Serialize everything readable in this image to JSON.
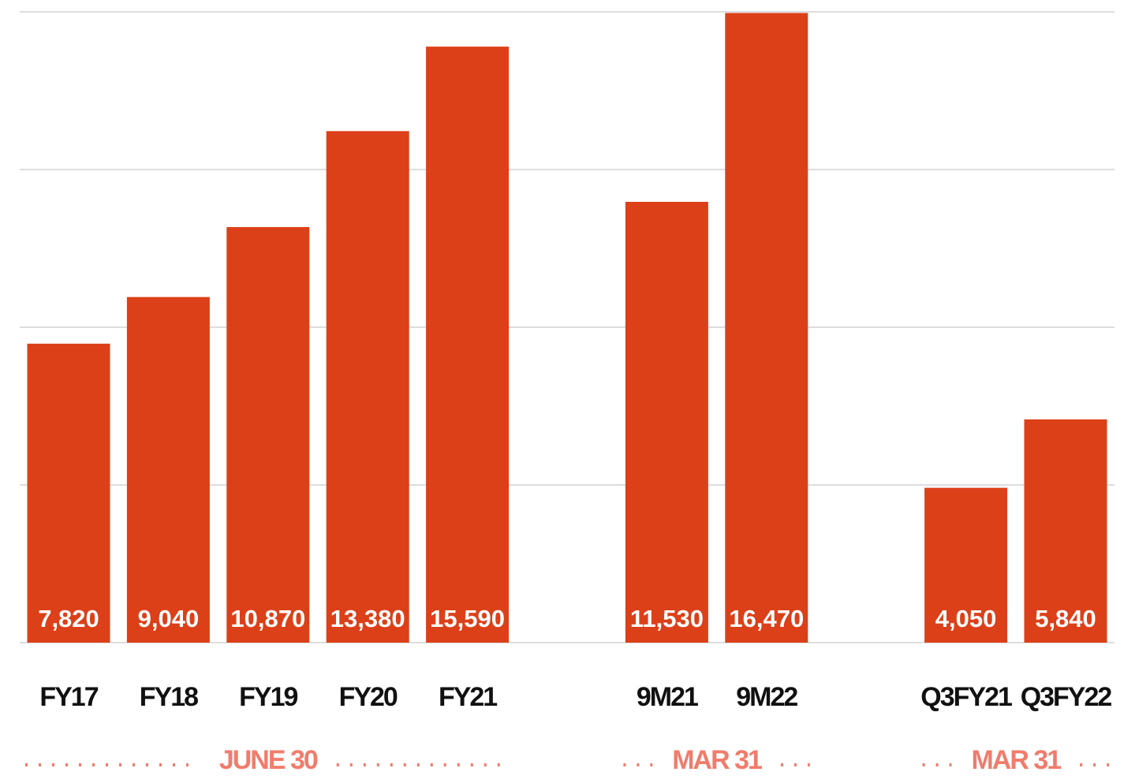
{
  "chart_data": {
    "type": "bar",
    "color": "#dc4019",
    "ylim": [
      0,
      16500
    ],
    "yticks": [
      0,
      4125,
      8250,
      12375,
      16500
    ],
    "grid": true,
    "groups": [
      {
        "label": "JUNE 30",
        "categories": [
          "FY17",
          "FY18",
          "FY19",
          "FY20",
          "FY21"
        ],
        "values": [
          7820,
          9040,
          10870,
          13380,
          15590
        ],
        "value_labels": [
          "7,820",
          "9,040",
          "10,870",
          "13,380",
          "15,590"
        ]
      },
      {
        "label": "MAR 31",
        "categories": [
          "9M21",
          "9M22"
        ],
        "values": [
          11530,
          16470
        ],
        "value_labels": [
          "11,530",
          "16,470"
        ]
      },
      {
        "label": "MAR 31",
        "categories": [
          "Q3FY21",
          "Q3FY22"
        ],
        "values": [
          4050,
          5840
        ],
        "value_labels": [
          "4,050",
          "5,840"
        ]
      }
    ]
  }
}
